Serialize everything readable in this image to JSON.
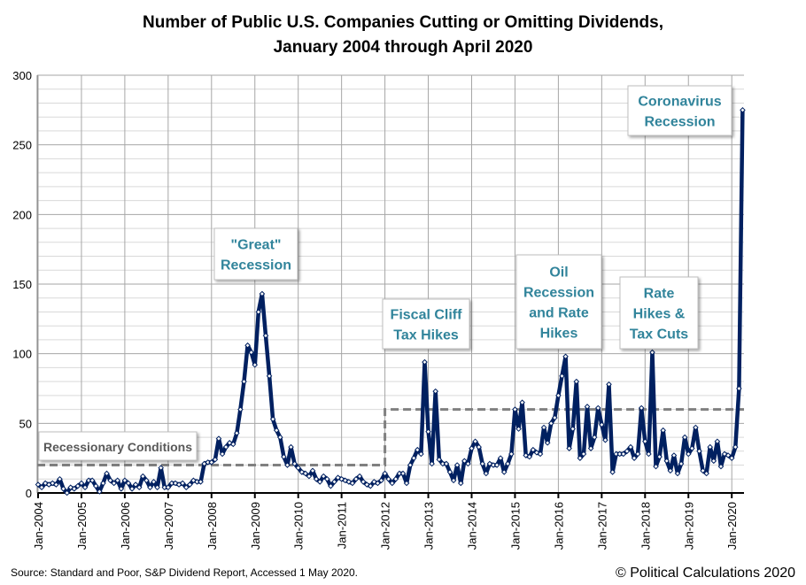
{
  "chart_data": {
    "type": "line",
    "title": "Number of Public U.S. Companies Cutting or Omitting Dividends,",
    "subtitle": "January 2004 through April 2020",
    "xlabel": "",
    "ylabel": "",
    "x_start": "Jan-2004",
    "x_end": "Apr-2020",
    "frequency": "monthly",
    "ylim": [
      0,
      300
    ],
    "yticks": [
      0,
      50,
      100,
      150,
      200,
      250,
      300
    ],
    "xtick_labels": [
      "Jan-2004",
      "Jan-2005",
      "Jan-2006",
      "Jan-2007",
      "Jan-2008",
      "Jan-2009",
      "Jan-2010",
      "Jan-2011",
      "Jan-2012",
      "Jan-2013",
      "Jan-2014",
      "Jan-2015",
      "Jan-2016",
      "Jan-2017",
      "Jan-2018",
      "Jan-2019",
      "Jan-2020"
    ],
    "grid": true,
    "series": [
      {
        "color": "#002060",
        "values": [
          6,
          4,
          7,
          6,
          7,
          6,
          10,
          3,
          0,
          4,
          3,
          5,
          7,
          4,
          9,
          9,
          5,
          1,
          7,
          14,
          9,
          7,
          9,
          3,
          9,
          7,
          3,
          6,
          4,
          12,
          9,
          4,
          8,
          4,
          18,
          4,
          4,
          7,
          7,
          6,
          7,
          4,
          6,
          9,
          8,
          8,
          21,
          22,
          22,
          24,
          39,
          28,
          33,
          36,
          35,
          43,
          60,
          80,
          106,
          101,
          92,
          130,
          143,
          113,
          84,
          53,
          45,
          40,
          26,
          20,
          33,
          21,
          18,
          15,
          14,
          12,
          16,
          10,
          8,
          12,
          10,
          5,
          8,
          11,
          10,
          9,
          8,
          7,
          10,
          12,
          8,
          6,
          5,
          8,
          7,
          9,
          14,
          10,
          7,
          10,
          14,
          14,
          7,
          20,
          25,
          31,
          28,
          94,
          44,
          21,
          73,
          24,
          21,
          21,
          15,
          9,
          20,
          7,
          23,
          21,
          32,
          37,
          33,
          21,
          14,
          21,
          20,
          20,
          25,
          15,
          21,
          28,
          60,
          46,
          65,
          27,
          26,
          31,
          29,
          28,
          47,
          36,
          50,
          54,
          70,
          84,
          98,
          32,
          46,
          80,
          25,
          28,
          62,
          32,
          40,
          61,
          49,
          38,
          78,
          15,
          28,
          28,
          28,
          30,
          33,
          25,
          28,
          61,
          37,
          28,
          101,
          19,
          26,
          45,
          23,
          16,
          27,
          14,
          21,
          40,
          28,
          32,
          47,
          30,
          16,
          14,
          33,
          23,
          37,
          19,
          28,
          27,
          25,
          33,
          75,
          275
        ]
      }
    ],
    "threshold_line": {
      "label": "Recessionary Conditions",
      "color": "#808080",
      "segments": [
        {
          "from": "Jan-2004",
          "to": "Jan-2012",
          "value": 20
        },
        {
          "from": "Jan-2012",
          "to": "Apr-2020",
          "value": 60
        }
      ]
    },
    "annotations": [
      {
        "lines": [
          "\"Great\"",
          "Recession"
        ]
      },
      {
        "lines": [
          "Fiscal Cliff",
          "Tax Hikes"
        ]
      },
      {
        "lines": [
          "Oil",
          "Recession",
          "and Rate",
          "Hikes"
        ]
      },
      {
        "lines": [
          "Rate",
          "Hikes &",
          "Tax Cuts"
        ]
      },
      {
        "lines": [
          "Coronavirus",
          "Recession"
        ]
      }
    ]
  },
  "footer": {
    "source": "Source:  Standard and Poor,  S&P Dividend  Report,  Accessed 1 May 2020.",
    "copyright": "© Political Calculations 2020"
  }
}
